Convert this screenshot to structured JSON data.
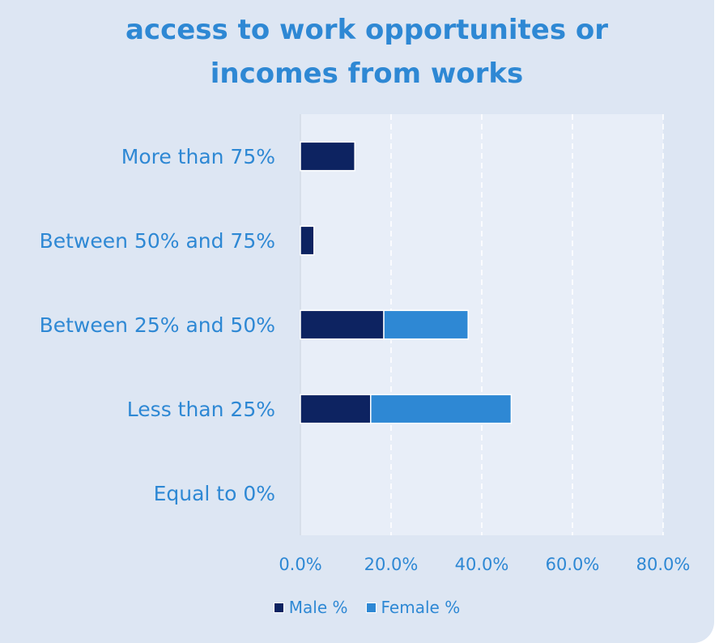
{
  "chart_data": {
    "type": "bar",
    "orientation": "horizontal",
    "stacked": true,
    "title_lines": [
      "access to work opportunites or",
      "incomes from works"
    ],
    "categories": [
      "More than 75%",
      "Between 50% and 75%",
      "Between 25% and 50%",
      "Less than 25%",
      "Equal to 0%"
    ],
    "series": [
      {
        "name": "Male %",
        "color": "#0d2361",
        "values": [
          12,
          3,
          18.4,
          15.5,
          0
        ]
      },
      {
        "name": "Female %",
        "color": "#2e88d4",
        "values": [
          0,
          0,
          18.6,
          31,
          0
        ]
      }
    ],
    "xlim": [
      0,
      80
    ],
    "xticks": [
      "0.0%",
      "20.0%",
      "40.0%",
      "60.0%",
      "80.0%"
    ],
    "grid": true,
    "legend_position": "bottom"
  }
}
